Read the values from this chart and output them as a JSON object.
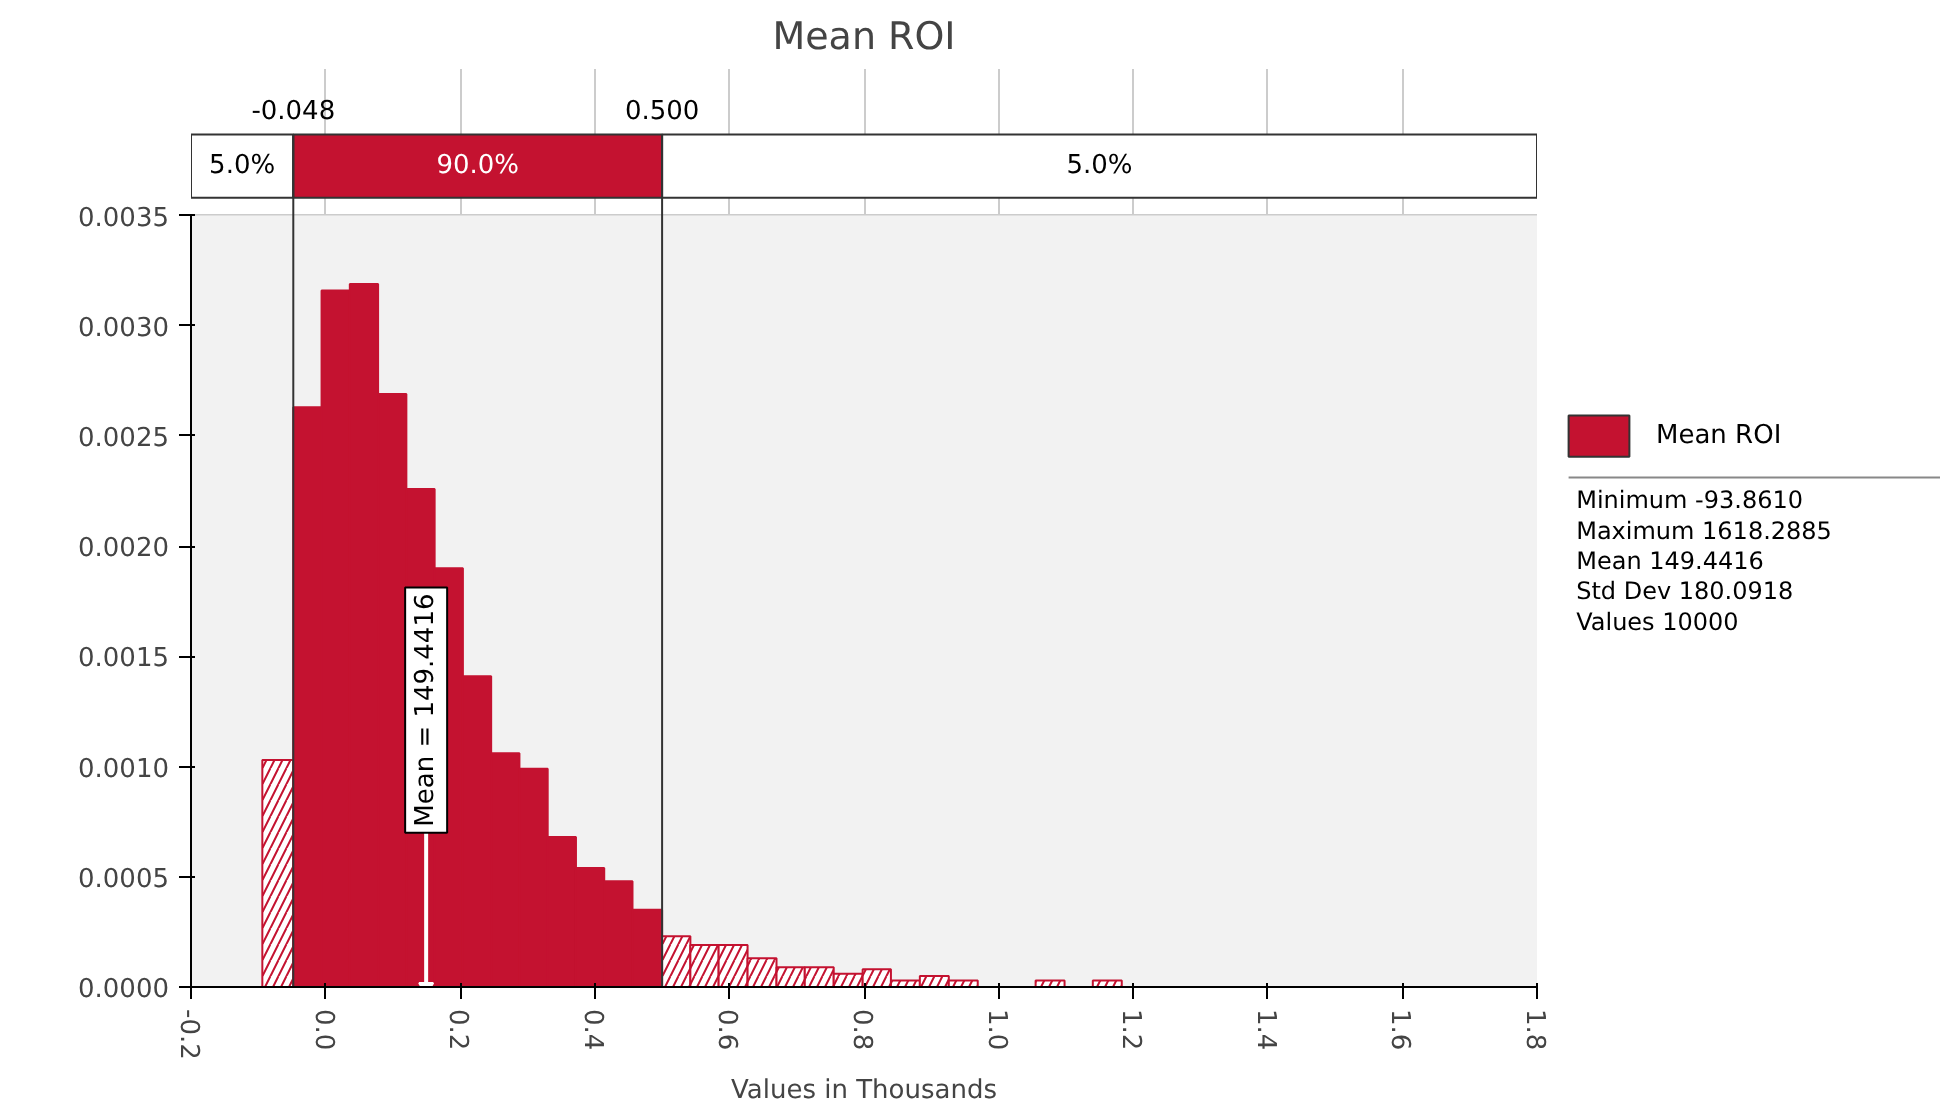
{
  "chart_data": {
    "type": "histogram",
    "title": "Mean ROI",
    "xlabel": "Values in Thousands",
    "bins": [
      -0.094,
      -0.048,
      -0.006,
      0.036,
      0.078,
      0.12,
      0.162,
      0.204,
      0.246,
      0.288,
      0.33,
      0.372,
      0.414,
      0.456,
      0.5,
      0.542,
      0.584,
      0.627,
      0.67,
      0.712,
      0.755,
      0.798,
      0.84,
      0.883,
      0.926,
      0.969,
      1.012,
      1.055,
      1.098,
      1.14,
      1.183
    ],
    "series": [
      {
        "name": "Mean ROI",
        "color": "#c41230",
        "values": [
          0.00103,
          0.00263,
          0.00316,
          0.00319,
          0.00269,
          0.00226,
          0.0019,
          0.00141,
          0.00106,
          0.00099,
          0.00068,
          0.00054,
          0.00048,
          0.00035,
          0.00023,
          0.00019,
          0.00019,
          0.00013,
          9e-05,
          9e-05,
          6e-05,
          8e-05,
          3e-05,
          5e-05,
          3e-05,
          0,
          0,
          3e-05,
          0,
          3e-05
        ]
      }
    ],
    "xlim": [
      -0.2,
      1.8
    ],
    "xticks": [
      {
        "value": -0.2,
        "label": "-0.2"
      },
      {
        "value": 0,
        "label": "0.0"
      },
      {
        "value": 0.2,
        "label": "0.2"
      },
      {
        "value": 0.4,
        "label": "0.4"
      },
      {
        "value": 0.6,
        "label": "0.6"
      },
      {
        "value": 0.8,
        "label": "0.8"
      },
      {
        "value": 1.0,
        "label": "1.0"
      },
      {
        "value": 1.2,
        "label": "1.2"
      },
      {
        "value": 1.4,
        "label": "1.4"
      },
      {
        "value": 1.6,
        "label": "1.6"
      },
      {
        "value": 1.8,
        "label": "1.8"
      }
    ],
    "ylim": [
      0,
      0.0035
    ],
    "yticks": [
      {
        "value": 0,
        "label": "0.0000"
      },
      {
        "value": 0.0005,
        "label": "0.0005"
      },
      {
        "value": 0.001,
        "label": "0.0010"
      },
      {
        "value": 0.0015,
        "label": "0.0015"
      },
      {
        "value": 0.002,
        "label": "0.0020"
      },
      {
        "value": 0.0025,
        "label": "0.0025"
      },
      {
        "value": 0.003,
        "label": "0.0030"
      },
      {
        "value": 0.0035,
        "label": "0.0035"
      }
    ],
    "ref_lines": [
      {
        "axis": "x",
        "value": -0.048,
        "label": "-0.048",
        "color": "#333333"
      },
      {
        "axis": "x",
        "value": 0.5,
        "label": "0.500",
        "color": "#333333"
      }
    ],
    "bands": [
      {
        "axis": "x",
        "from": -0.2,
        "to": -0.048,
        "label": "5.0%"
      },
      {
        "axis": "x",
        "from": -0.048,
        "to": 0.5,
        "label": "90.0%"
      },
      {
        "axis": "x",
        "from": 0.5,
        "to": 1.8,
        "label": "5.0%"
      }
    ],
    "annotations": [
      {
        "text": "Mean = 149.4416",
        "x": 0.1494,
        "y": 0
      },
      "Minimum -93.8610",
      "Maximum 1618.2885",
      "Mean 149.4416",
      "Std Dev 180.0918",
      "Values 10000"
    ],
    "grid": true,
    "legend": "right"
  }
}
